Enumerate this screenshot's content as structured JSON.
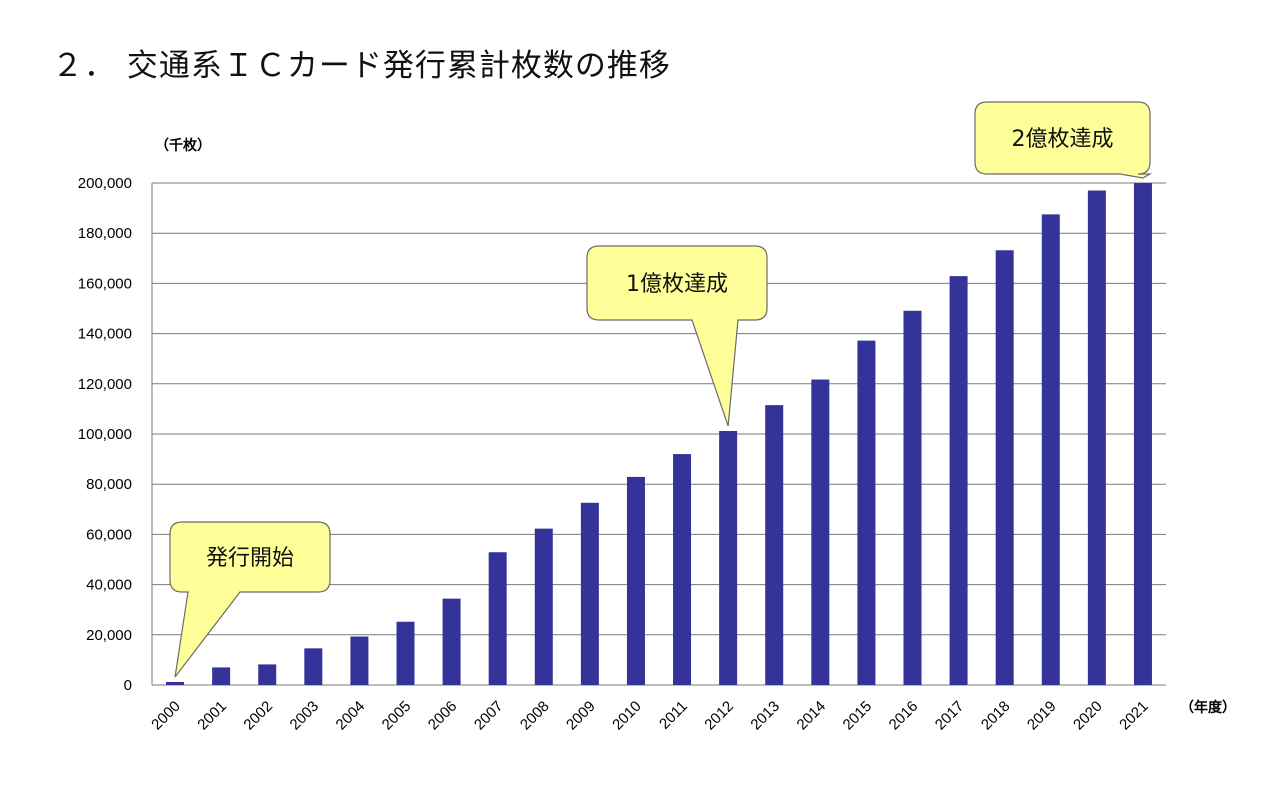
{
  "title": "２． 交通系ＩＣカード発行累計枚数の推移",
  "chart_data": {
    "type": "bar",
    "y_unit_label": "（千枚）",
    "x_unit_label": "（年度）",
    "categories": [
      "2000",
      "2001",
      "2002",
      "2003",
      "2004",
      "2005",
      "2006",
      "2007",
      "2008",
      "2009",
      "2010",
      "2011",
      "2012",
      "2013",
      "2014",
      "2015",
      "2016",
      "2017",
      "2018",
      "2019",
      "2020",
      "2021"
    ],
    "values": [
      1200,
      7000,
      8200,
      14600,
      19300,
      25200,
      34400,
      52900,
      62300,
      72600,
      82900,
      92000,
      101200,
      111500,
      121700,
      137200,
      149100,
      162900,
      173200,
      187500,
      197000,
      200000
    ],
    "ylim": [
      0,
      200000
    ],
    "yticks": [
      "0",
      "20,000",
      "40,000",
      "60,000",
      "80,000",
      "100,000",
      "120,000",
      "140,000",
      "160,000",
      "180,000",
      "200,000"
    ],
    "grid": true,
    "bar_color": "#333399",
    "annotations": [
      {
        "text": "発行開始",
        "category": "2000"
      },
      {
        "text": "1億枚達成",
        "category": "2012"
      },
      {
        "text": "2億枚達成",
        "category": "2021"
      }
    ],
    "callout_fill": "#ffff99"
  }
}
